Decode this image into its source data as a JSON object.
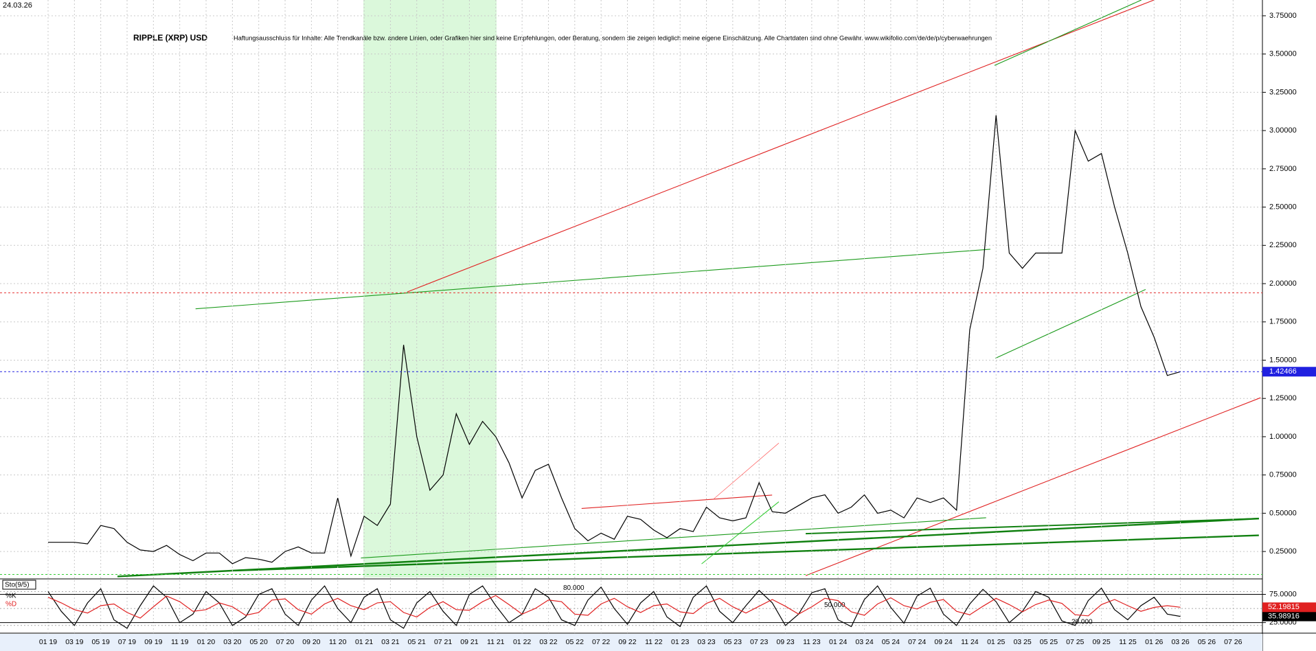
{
  "chart_data": [
    {
      "type": "line",
      "date": "24.03.26",
      "title": "RIPPLE (XRP) USD",
      "subtitle": "Haftungsausschluss für Inhalte: Alle Trendkanäle bzw. andere Linien, oder Grafiken hier sind keine Empfehlungen, oder Beratung, sondern die zeigen lediglich meine eigene Einschätzung. Alle Chartdaten sind ohne Gewähr. www.wikifolio.com/de/de/p/cyberwaehrungen",
      "categories": [
        "01 19",
        null,
        "03 19",
        null,
        "05 19",
        null,
        "07 19",
        null,
        "09 19",
        null,
        "11 19",
        null,
        "01 20",
        null,
        "03 20",
        null,
        "05 20",
        null,
        "07 20",
        null,
        "09 20",
        null,
        "11 20",
        null,
        "01 21",
        null,
        "03 21",
        null,
        "05 21",
        null,
        "07 21",
        null,
        "09 21",
        null,
        "11 21",
        null,
        "01 22",
        null,
        "03 22",
        null,
        "05 22",
        null,
        "07 22",
        null,
        "09 22",
        null,
        "11 22",
        null,
        "01 23",
        null,
        "03 23",
        null,
        "05 23",
        null,
        "07 23",
        null,
        "09 23",
        null,
        "11 23",
        null,
        "01 24",
        null,
        "03 24",
        null,
        "05 24",
        null,
        "07 24",
        null,
        "09 24",
        null,
        "11 24",
        null,
        "01 25",
        null,
        "03 25",
        null,
        "05 25",
        null,
        "07 25",
        null,
        "09 25",
        null,
        "11 25",
        null,
        "01 26",
        null,
        "03 26",
        null,
        "05 26",
        null,
        "07 26"
      ],
      "series": [
        {
          "name": "XRP",
          "color": "#000000",
          "values": [
            0.31,
            0.31,
            0.31,
            0.3,
            0.42,
            0.4,
            0.31,
            0.26,
            0.25,
            0.29,
            0.23,
            0.19,
            0.24,
            0.24,
            0.17,
            0.21,
            0.2,
            0.18,
            0.25,
            0.28,
            0.24,
            0.24,
            0.6,
            0.22,
            0.48,
            0.42,
            0.56,
            1.6,
            1.0,
            0.65,
            0.75,
            1.15,
            0.95,
            1.1,
            1.0,
            0.83,
            0.6,
            0.78,
            0.82,
            0.6,
            0.4,
            0.32,
            0.37,
            0.33,
            0.48,
            0.46,
            0.39,
            0.34,
            0.4,
            0.38,
            0.54,
            0.47,
            0.45,
            0.47,
            0.7,
            0.51,
            0.5,
            0.55,
            0.6,
            0.62,
            0.5,
            0.54,
            0.62,
            0.5,
            0.52,
            0.47,
            0.6,
            0.57,
            0.6,
            0.52,
            1.7,
            2.1,
            3.1,
            2.2,
            2.1,
            2.2,
            2.2,
            2.2,
            3.0,
            2.8,
            2.85,
            2.5,
            2.2,
            1.85,
            1.65,
            1.4,
            1.42466,
            null,
            null,
            null,
            null
          ]
        }
      ],
      "ylim": [
        0.08,
        3.853
      ],
      "yticks": [
        {
          "value": 0.25,
          "label": "0.25000"
        },
        {
          "value": 0.5,
          "label": "0.50000"
        },
        {
          "value": 0.75,
          "label": "0.75000"
        },
        {
          "value": 1.0,
          "label": "1.00000"
        },
        {
          "value": 1.25,
          "label": "1.25000"
        },
        {
          "value": 1.5,
          "label": "1.50000"
        },
        {
          "value": 1.75,
          "label": "1.75000"
        },
        {
          "value": 2.0,
          "label": "2.00000"
        },
        {
          "value": 2.25,
          "label": "2.25000"
        },
        {
          "value": 2.5,
          "label": "2.50000"
        },
        {
          "value": 2.75,
          "label": "2.75000"
        },
        {
          "value": 3.0,
          "label": "3.00000"
        },
        {
          "value": 3.25,
          "label": "3.25000"
        },
        {
          "value": 3.5,
          "label": "3.50000"
        },
        {
          "value": 3.75,
          "label": "3.75000"
        }
      ],
      "hlines": [
        {
          "value": 1.94,
          "color": "#e83030"
        },
        {
          "value": 0.1,
          "color": "#33cc33"
        }
      ],
      "grid": true
    },
    {
      "type": "line",
      "title": "Sto(9/5)",
      "series": [
        {
          "name": "%K",
          "color": "#000000",
          "values": [
            80,
            45,
            20,
            60,
            85,
            30,
            15,
            55,
            90,
            70,
            25,
            40,
            80,
            60,
            20,
            35,
            75,
            85,
            40,
            20,
            65,
            90,
            50,
            25,
            70,
            85,
            30,
            15,
            60,
            80,
            45,
            20,
            75,
            90,
            55,
            25,
            40,
            85,
            70,
            30,
            20,
            65,
            88,
            50,
            22,
            60,
            80,
            35,
            18,
            70,
            90,
            45,
            25,
            55,
            82,
            60,
            20,
            40,
            78,
            85,
            30,
            18,
            66,
            90,
            52,
            24,
            72,
            86,
            40,
            20,
            58,
            84,
            62,
            25,
            45,
            80,
            70,
            28,
            20,
            64,
            86,
            48,
            30,
            55,
            70,
            40,
            35.98916,
            null,
            null,
            null,
            null
          ]
        },
        {
          "name": "%D",
          "color": "#e02020",
          "values": [
            70,
            60,
            48,
            42,
            55,
            58,
            43,
            33,
            53,
            72,
            62,
            45,
            48,
            60,
            53,
            38,
            43,
            65,
            67,
            48,
            40,
            58,
            68,
            55,
            48,
            60,
            62,
            43,
            35,
            52,
            62,
            48,
            47,
            62,
            73,
            57,
            40,
            50,
            65,
            62,
            40,
            38,
            58,
            68,
            53,
            43,
            55,
            58,
            44,
            41,
            59,
            68,
            53,
            42,
            54,
            66,
            54,
            40,
            53,
            68,
            64,
            44,
            38,
            58,
            69,
            55,
            49,
            61,
            66,
            45,
            39,
            54,
            68,
            57,
            44,
            57,
            65,
            59,
            39,
            37,
            57,
            66,
            55,
            45,
            52,
            55,
            52.19815,
            null,
            null,
            null,
            null
          ]
        }
      ],
      "ylim": [
        10,
        100
      ],
      "yticks": [
        {
          "value": 75,
          "label": "75.0000"
        },
        {
          "value": 25,
          "label": "25.0000"
        }
      ],
      "levels": [
        {
          "value": 80,
          "label": "80.000"
        },
        {
          "value": 50,
          "label": "50.000"
        },
        {
          "value": 20,
          "label": "20.000"
        }
      ]
    }
  ]
}
